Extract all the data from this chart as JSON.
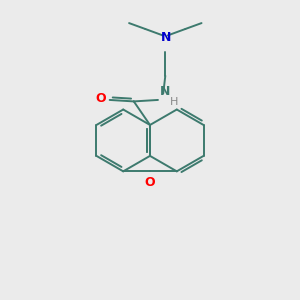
{
  "background_color": "#ebebeb",
  "bond_color": "#3d7a6e",
  "atom_colors": {
    "O": "#ff0000",
    "N_amide": "#3d7a6e",
    "N_amine": "#0000cc",
    "H": "#888888"
  },
  "figsize": [
    3.0,
    3.0
  ],
  "dpi": 100,
  "lw": 1.4
}
